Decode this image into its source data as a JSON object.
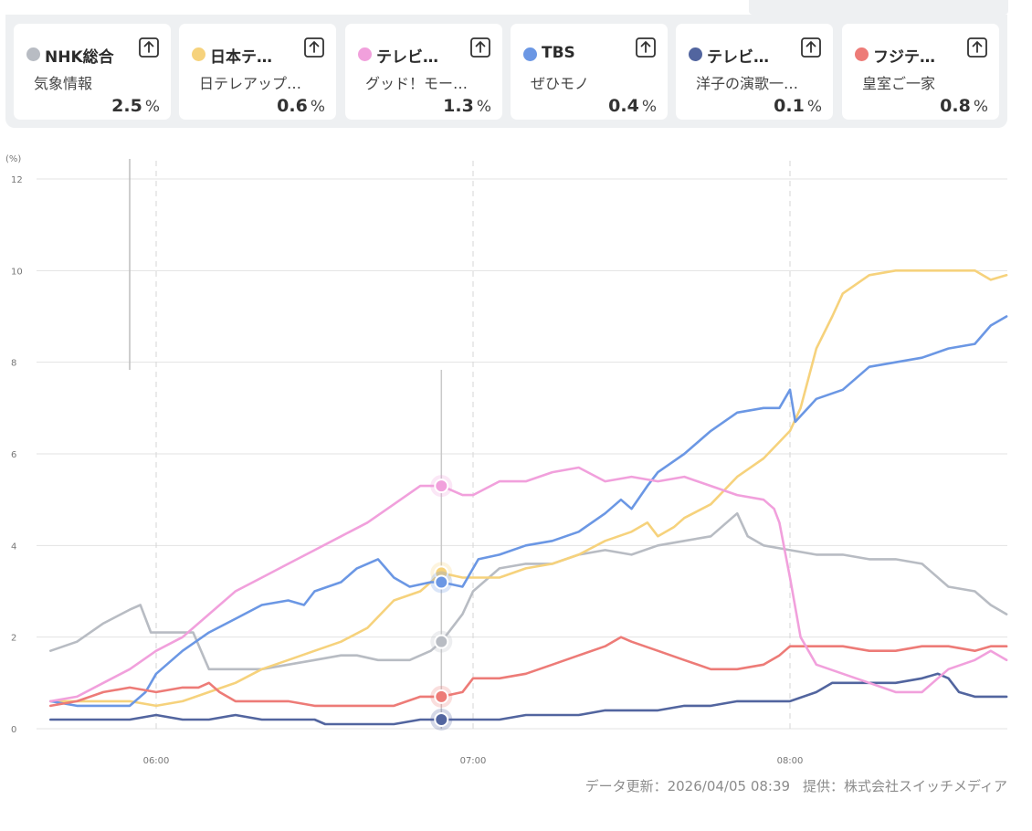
{
  "channels": [
    {
      "name": "NHK総合",
      "program": "気象情報",
      "rating": "2.5",
      "unit": "%",
      "color": "#b8bcc3"
    },
    {
      "name": "日本テ…",
      "program": "日テレアップ…",
      "rating": "0.6",
      "unit": "%",
      "color": "#f6d27c"
    },
    {
      "name": "テレビ…",
      "program": "グッド！モー…",
      "rating": "1.3",
      "unit": "%",
      "color": "#f1a0dc"
    },
    {
      "name": "TBS",
      "program": "ぜひモノ",
      "rating": "0.4",
      "unit": "%",
      "color": "#6b97e4"
    },
    {
      "name": "テレビ…",
      "program": "洋子の演歌一…",
      "rating": "0.1",
      "unit": "%",
      "color": "#52659f"
    },
    {
      "name": "フジテ…",
      "program": "皇室ご一家",
      "rating": "0.8",
      "unit": "%",
      "color": "#ed7b77"
    }
  ],
  "footer": {
    "updated": "データ更新：2026/04/05 08:39",
    "provider": "提供：株式会社スイッチメディア"
  },
  "chart_data": {
    "type": "line",
    "y_unit_label": "(%)",
    "ylim": [
      0,
      12
    ],
    "y_ticks": [
      "0",
      "2",
      "4",
      "6",
      "8",
      "10",
      "12"
    ],
    "x_ticks": [
      "06:00",
      "07:00",
      "08:00"
    ],
    "xlim": [
      "05:40",
      "08:41"
    ],
    "cursor_time": "06:54",
    "grid": true,
    "series": [
      {
        "name": "NHK総合",
        "color": "#b8bcc3",
        "points": [
          [
            "05:40",
            1.7
          ],
          [
            "05:45",
            1.9
          ],
          [
            "05:50",
            2.3
          ],
          [
            "05:55",
            2.6
          ],
          [
            "05:57",
            2.7
          ],
          [
            "05:59",
            2.1
          ],
          [
            "06:03",
            2.1
          ],
          [
            "06:07",
            2.1
          ],
          [
            "06:10",
            1.3
          ],
          [
            "06:15",
            1.3
          ],
          [
            "06:20",
            1.3
          ],
          [
            "06:25",
            1.4
          ],
          [
            "06:30",
            1.5
          ],
          [
            "06:35",
            1.6
          ],
          [
            "06:38",
            1.6
          ],
          [
            "06:42",
            1.5
          ],
          [
            "06:45",
            1.5
          ],
          [
            "06:48",
            1.5
          ],
          [
            "06:52",
            1.7
          ],
          [
            "06:54",
            1.9
          ],
          [
            "06:58",
            2.5
          ],
          [
            "07:00",
            3.0
          ],
          [
            "07:05",
            3.5
          ],
          [
            "07:10",
            3.6
          ],
          [
            "07:15",
            3.6
          ],
          [
            "07:20",
            3.8
          ],
          [
            "07:25",
            3.9
          ],
          [
            "07:30",
            3.8
          ],
          [
            "07:35",
            4.0
          ],
          [
            "07:40",
            4.1
          ],
          [
            "07:45",
            4.2
          ],
          [
            "07:50",
            4.7
          ],
          [
            "07:52",
            4.2
          ],
          [
            "07:55",
            4.0
          ],
          [
            "08:00",
            3.9
          ],
          [
            "08:05",
            3.8
          ],
          [
            "08:10",
            3.8
          ],
          [
            "08:15",
            3.7
          ],
          [
            "08:20",
            3.7
          ],
          [
            "08:25",
            3.6
          ],
          [
            "08:30",
            3.1
          ],
          [
            "08:35",
            3.0
          ],
          [
            "08:38",
            2.7
          ],
          [
            "08:41",
            2.5
          ]
        ]
      },
      {
        "name": "日本テ…",
        "color": "#f6d27c",
        "points": [
          [
            "05:40",
            0.6
          ],
          [
            "05:45",
            0.6
          ],
          [
            "05:50",
            0.6
          ],
          [
            "05:55",
            0.6
          ],
          [
            "06:00",
            0.5
          ],
          [
            "06:05",
            0.6
          ],
          [
            "06:10",
            0.8
          ],
          [
            "06:15",
            1.0
          ],
          [
            "06:20",
            1.3
          ],
          [
            "06:25",
            1.5
          ],
          [
            "06:30",
            1.7
          ],
          [
            "06:35",
            1.9
          ],
          [
            "06:40",
            2.2
          ],
          [
            "06:45",
            2.8
          ],
          [
            "06:50",
            3.0
          ],
          [
            "06:54",
            3.4
          ],
          [
            "06:58",
            3.3
          ],
          [
            "07:00",
            3.3
          ],
          [
            "07:05",
            3.3
          ],
          [
            "07:10",
            3.5
          ],
          [
            "07:15",
            3.6
          ],
          [
            "07:20",
            3.8
          ],
          [
            "07:25",
            4.1
          ],
          [
            "07:30",
            4.3
          ],
          [
            "07:33",
            4.5
          ],
          [
            "07:35",
            4.2
          ],
          [
            "07:38",
            4.4
          ],
          [
            "07:40",
            4.6
          ],
          [
            "07:45",
            4.9
          ],
          [
            "07:50",
            5.5
          ],
          [
            "07:55",
            5.9
          ],
          [
            "08:00",
            6.5
          ],
          [
            "08:02",
            7.0
          ],
          [
            "08:05",
            8.3
          ],
          [
            "08:08",
            9.0
          ],
          [
            "08:10",
            9.5
          ],
          [
            "08:15",
            9.9
          ],
          [
            "08:20",
            10.0
          ],
          [
            "08:25",
            10.0
          ],
          [
            "08:30",
            10.0
          ],
          [
            "08:35",
            10.0
          ],
          [
            "08:38",
            9.8
          ],
          [
            "08:41",
            9.9
          ]
        ]
      },
      {
        "name": "テレビ…",
        "color": "#f1a0dc",
        "points": [
          [
            "05:40",
            0.6
          ],
          [
            "05:45",
            0.7
          ],
          [
            "05:50",
            1.0
          ],
          [
            "05:55",
            1.3
          ],
          [
            "06:00",
            1.7
          ],
          [
            "06:05",
            2.0
          ],
          [
            "06:10",
            2.5
          ],
          [
            "06:15",
            3.0
          ],
          [
            "06:20",
            3.3
          ],
          [
            "06:25",
            3.6
          ],
          [
            "06:30",
            3.9
          ],
          [
            "06:35",
            4.2
          ],
          [
            "06:40",
            4.5
          ],
          [
            "06:45",
            4.9
          ],
          [
            "06:50",
            5.3
          ],
          [
            "06:54",
            5.3
          ],
          [
            "06:58",
            5.1
          ],
          [
            "07:00",
            5.1
          ],
          [
            "07:05",
            5.4
          ],
          [
            "07:10",
            5.4
          ],
          [
            "07:15",
            5.6
          ],
          [
            "07:20",
            5.7
          ],
          [
            "07:25",
            5.4
          ],
          [
            "07:30",
            5.5
          ],
          [
            "07:35",
            5.4
          ],
          [
            "07:40",
            5.5
          ],
          [
            "07:45",
            5.3
          ],
          [
            "07:50",
            5.1
          ],
          [
            "07:55",
            5.0
          ],
          [
            "07:57",
            4.8
          ],
          [
            "07:58",
            4.5
          ],
          [
            "08:00",
            3.3
          ],
          [
            "08:02",
            2.0
          ],
          [
            "08:05",
            1.4
          ],
          [
            "08:10",
            1.2
          ],
          [
            "08:15",
            1.0
          ],
          [
            "08:20",
            0.8
          ],
          [
            "08:25",
            0.8
          ],
          [
            "08:28",
            1.1
          ],
          [
            "08:30",
            1.3
          ],
          [
            "08:35",
            1.5
          ],
          [
            "08:38",
            1.7
          ],
          [
            "08:41",
            1.5
          ]
        ]
      },
      {
        "name": "TBS",
        "color": "#6b97e4",
        "points": [
          [
            "05:40",
            0.6
          ],
          [
            "05:45",
            0.5
          ],
          [
            "05:50",
            0.5
          ],
          [
            "05:55",
            0.5
          ],
          [
            "05:58",
            0.8
          ],
          [
            "06:00",
            1.2
          ],
          [
            "06:05",
            1.7
          ],
          [
            "06:10",
            2.1
          ],
          [
            "06:15",
            2.4
          ],
          [
            "06:20",
            2.7
          ],
          [
            "06:25",
            2.8
          ],
          [
            "06:28",
            2.7
          ],
          [
            "06:30",
            3.0
          ],
          [
            "06:35",
            3.2
          ],
          [
            "06:38",
            3.5
          ],
          [
            "06:42",
            3.7
          ],
          [
            "06:45",
            3.3
          ],
          [
            "06:48",
            3.1
          ],
          [
            "06:52",
            3.2
          ],
          [
            "06:54",
            3.2
          ],
          [
            "06:58",
            3.1
          ],
          [
            "07:01",
            3.7
          ],
          [
            "07:05",
            3.8
          ],
          [
            "07:10",
            4.0
          ],
          [
            "07:15",
            4.1
          ],
          [
            "07:20",
            4.3
          ],
          [
            "07:25",
            4.7
          ],
          [
            "07:28",
            5.0
          ],
          [
            "07:30",
            4.8
          ],
          [
            "07:33",
            5.3
          ],
          [
            "07:35",
            5.6
          ],
          [
            "07:40",
            6.0
          ],
          [
            "07:45",
            6.5
          ],
          [
            "07:50",
            6.9
          ],
          [
            "07:55",
            7.0
          ],
          [
            "07:58",
            7.0
          ],
          [
            "08:00",
            7.4
          ],
          [
            "08:01",
            6.7
          ],
          [
            "08:05",
            7.2
          ],
          [
            "08:10",
            7.4
          ],
          [
            "08:15",
            7.9
          ],
          [
            "08:20",
            8.0
          ],
          [
            "08:25",
            8.1
          ],
          [
            "08:30",
            8.3
          ],
          [
            "08:35",
            8.4
          ],
          [
            "08:38",
            8.8
          ],
          [
            "08:41",
            9.0
          ]
        ]
      },
      {
        "name": "テレビ…",
        "color": "#52659f",
        "points": [
          [
            "05:40",
            0.2
          ],
          [
            "05:45",
            0.2
          ],
          [
            "05:50",
            0.2
          ],
          [
            "05:55",
            0.2
          ],
          [
            "06:00",
            0.3
          ],
          [
            "06:05",
            0.2
          ],
          [
            "06:10",
            0.2
          ],
          [
            "06:15",
            0.3
          ],
          [
            "06:20",
            0.2
          ],
          [
            "06:25",
            0.2
          ],
          [
            "06:30",
            0.2
          ],
          [
            "06:32",
            0.1
          ],
          [
            "06:35",
            0.1
          ],
          [
            "06:40",
            0.1
          ],
          [
            "06:45",
            0.1
          ],
          [
            "06:50",
            0.2
          ],
          [
            "06:54",
            0.2
          ],
          [
            "07:00",
            0.2
          ],
          [
            "07:05",
            0.2
          ],
          [
            "07:10",
            0.3
          ],
          [
            "07:15",
            0.3
          ],
          [
            "07:20",
            0.3
          ],
          [
            "07:25",
            0.4
          ],
          [
            "07:30",
            0.4
          ],
          [
            "07:35",
            0.4
          ],
          [
            "07:40",
            0.5
          ],
          [
            "07:45",
            0.5
          ],
          [
            "07:50",
            0.6
          ],
          [
            "07:55",
            0.6
          ],
          [
            "08:00",
            0.6
          ],
          [
            "08:05",
            0.8
          ],
          [
            "08:08",
            1.0
          ],
          [
            "08:10",
            1.0
          ],
          [
            "08:15",
            1.0
          ],
          [
            "08:20",
            1.0
          ],
          [
            "08:25",
            1.1
          ],
          [
            "08:28",
            1.2
          ],
          [
            "08:30",
            1.1
          ],
          [
            "08:32",
            0.8
          ],
          [
            "08:35",
            0.7
          ],
          [
            "08:38",
            0.7
          ],
          [
            "08:41",
            0.7
          ]
        ]
      },
      {
        "name": "フジテ…",
        "color": "#ed7b77",
        "points": [
          [
            "05:40",
            0.5
          ],
          [
            "05:45",
            0.6
          ],
          [
            "05:50",
            0.8
          ],
          [
            "05:55",
            0.9
          ],
          [
            "06:00",
            0.8
          ],
          [
            "06:05",
            0.9
          ],
          [
            "06:08",
            0.9
          ],
          [
            "06:10",
            1.0
          ],
          [
            "06:12",
            0.8
          ],
          [
            "06:15",
            0.6
          ],
          [
            "06:20",
            0.6
          ],
          [
            "06:25",
            0.6
          ],
          [
            "06:30",
            0.5
          ],
          [
            "06:35",
            0.5
          ],
          [
            "06:40",
            0.5
          ],
          [
            "06:45",
            0.5
          ],
          [
            "06:50",
            0.7
          ],
          [
            "06:54",
            0.7
          ],
          [
            "06:58",
            0.8
          ],
          [
            "07:00",
            1.1
          ],
          [
            "07:05",
            1.1
          ],
          [
            "07:10",
            1.2
          ],
          [
            "07:15",
            1.4
          ],
          [
            "07:20",
            1.6
          ],
          [
            "07:25",
            1.8
          ],
          [
            "07:28",
            2.0
          ],
          [
            "07:30",
            1.9
          ],
          [
            "07:35",
            1.7
          ],
          [
            "07:40",
            1.5
          ],
          [
            "07:45",
            1.3
          ],
          [
            "07:50",
            1.3
          ],
          [
            "07:55",
            1.4
          ],
          [
            "07:58",
            1.6
          ],
          [
            "08:00",
            1.8
          ],
          [
            "08:05",
            1.8
          ],
          [
            "08:10",
            1.8
          ],
          [
            "08:15",
            1.7
          ],
          [
            "08:20",
            1.7
          ],
          [
            "08:25",
            1.8
          ],
          [
            "08:30",
            1.8
          ],
          [
            "08:35",
            1.7
          ],
          [
            "08:38",
            1.8
          ],
          [
            "08:41",
            1.8
          ]
        ]
      }
    ]
  }
}
